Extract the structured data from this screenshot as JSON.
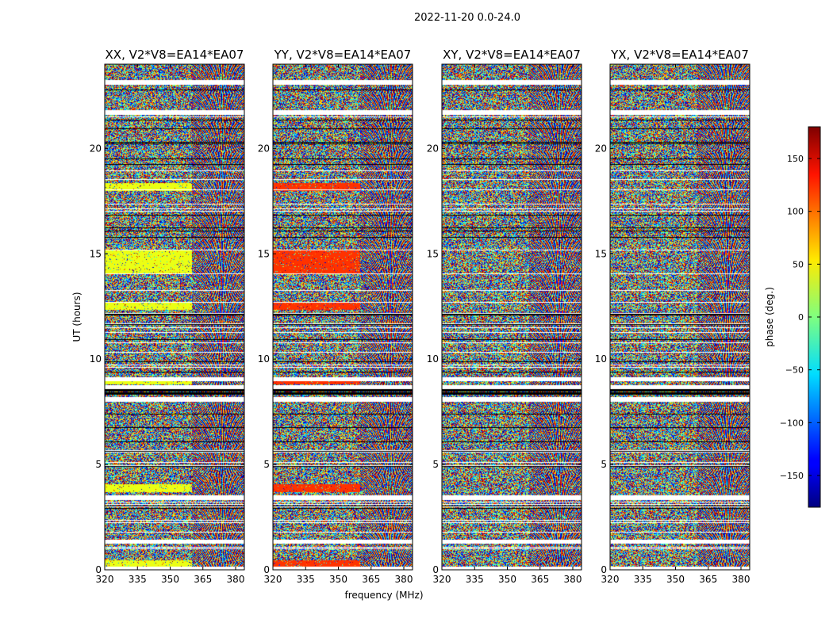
{
  "suptitle": "2022-11-20 0.0-24.0",
  "chart_data": {
    "type": "heatmap",
    "title": "2022-11-20 0.0-24.0",
    "xlabel": "frequency (MHz)",
    "ylabel": "UT (hours)",
    "xlim": [
      320,
      384
    ],
    "ylim": [
      0,
      24
    ],
    "xticks": [
      "320",
      "335",
      "350",
      "365",
      "380"
    ],
    "yticks": [
      "0",
      "5",
      "10",
      "15",
      "20"
    ],
    "panels": [
      {
        "title": "XX, V2*V8=EA14*EA07",
        "bias": "yellow"
      },
      {
        "title": "YY, V2*V8=EA14*EA07",
        "bias": "red"
      },
      {
        "title": "XY, V2*V8=EA14*EA07",
        "bias": "none"
      },
      {
        "title": "YX, V2*V8=EA14*EA07",
        "bias": "none"
      }
    ],
    "colorbar": {
      "label": "phase (deg.)",
      "range": [
        -180,
        180
      ],
      "ticks": [
        "150",
        "100",
        "50",
        "0",
        "−50",
        "−100",
        "−150"
      ],
      "tick_values": [
        150,
        100,
        50,
        0,
        -50,
        -100,
        -150
      ],
      "colormap": "jet"
    }
  }
}
